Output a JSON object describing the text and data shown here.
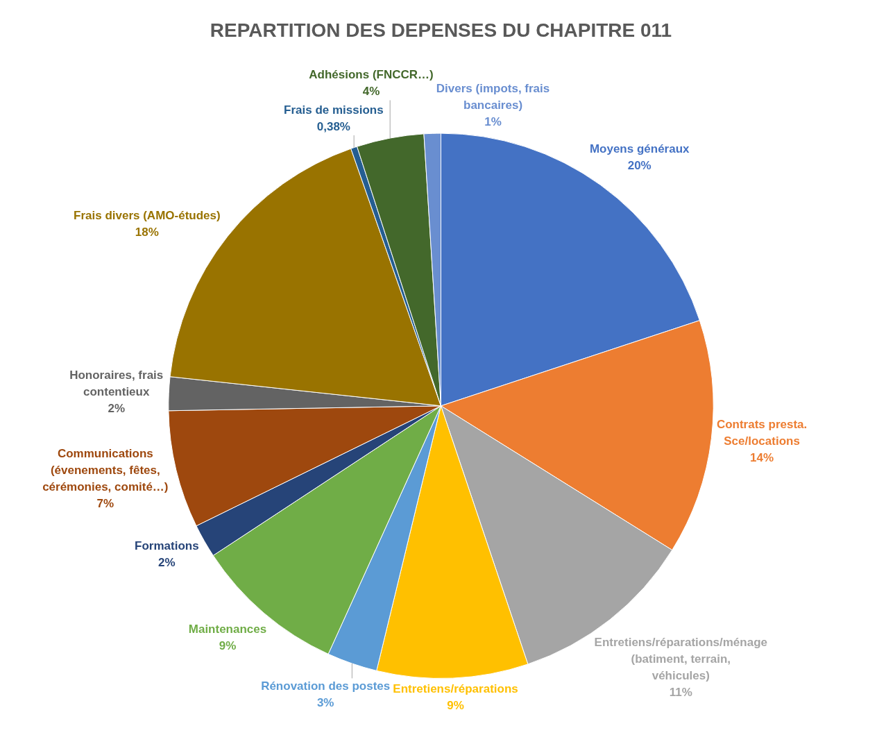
{
  "chart_data": {
    "type": "pie",
    "title": "REPARTITION DES DEPENSES DU CHAPITRE 011",
    "categories": [
      "Moyens généraux",
      "Contrats presta. Sce/locations",
      "Entretiens/réparations/ménage (batiment, terrain, véhicules)",
      "Entretiens/réparations",
      "Rénovation des postes",
      "Maintenances",
      "Formations",
      "Communications (évenements, fêtes, cérémonies, comité…)",
      "Honoraires, frais contentieux",
      "Frais divers (AMO-études)",
      "Frais de missions",
      "Adhésions (FNCCR…)",
      "Divers (impots, frais bancaires)"
    ],
    "values": [
      20,
      14,
      11,
      9,
      3,
      9,
      2,
      7,
      2,
      18,
      0.38,
      4,
      1
    ],
    "value_labels": [
      "20%",
      "14%",
      "11%",
      "9%",
      "3%",
      "9%",
      "2%",
      "7%",
      "2%",
      "18%",
      "0,38%",
      "4%",
      "1%"
    ],
    "colors": [
      "#4472c4",
      "#ed7d31",
      "#a5a5a5",
      "#ffc000",
      "#5b9bd5",
      "#70ad47",
      "#264478",
      "#9e480e",
      "#636363",
      "#997300",
      "#255e91",
      "#43682b",
      "#698ed0"
    ],
    "legend": false
  }
}
